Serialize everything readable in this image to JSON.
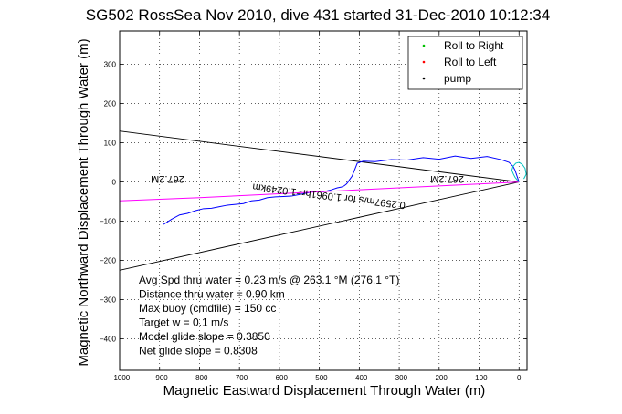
{
  "chart_data": {
    "type": "line",
    "title": "SG502 RossSea Nov 2010, dive 431 started 31-Dec-2010 10:12:34",
    "xlabel": "Magnetic Eastward Displacement Through Water (m)",
    "ylabel": "Magnetic Northward Displacement Through Water (m)",
    "xlim": [
      -1000,
      20
    ],
    "ylim": [
      -480,
      385
    ],
    "x_ticks": [
      -1000,
      -900,
      -800,
      -700,
      -600,
      -500,
      -400,
      -300,
      -200,
      -100,
      0
    ],
    "x_tick_labels": [
      "−1000",
      "−900",
      "−800",
      "−700",
      "−600",
      "−500",
      "−400",
      "−300",
      "−200",
      "−100",
      "0"
    ],
    "y_ticks": [
      -400,
      -300,
      -200,
      -100,
      0,
      100,
      200,
      300
    ],
    "y_tick_labels": [
      "−400",
      "−300",
      "−200",
      "−100",
      "0",
      "100",
      "200",
      "300"
    ],
    "grid": true,
    "legend_position": "top-right",
    "legend": [
      {
        "label": "Roll to Right",
        "color": "#00c000",
        "marker": "dot"
      },
      {
        "label": "Roll to Left",
        "color": "#ff0000",
        "marker": "dot"
      },
      {
        "label": "pump",
        "color": "#000000",
        "marker": "dot"
      }
    ],
    "series": [
      {
        "color": "#0000ff",
        "x": [
          0,
          -5,
          -10,
          -15,
          -25,
          -45,
          -80,
          -120,
          -160,
          -200,
          -240,
          -280,
          -320,
          -360,
          -390,
          -405,
          -412,
          -418,
          -425,
          -428,
          -432,
          -438,
          -445,
          -455,
          -470,
          -490,
          -510,
          -530,
          -550,
          -570,
          -590,
          -610,
          -630,
          -650,
          -670,
          -690,
          -710,
          -730,
          -750,
          -770,
          -790,
          -810,
          -830,
          -850,
          -870,
          -890
        ],
        "y": [
          0,
          15,
          30,
          40,
          50,
          57,
          65,
          60,
          66,
          58,
          62,
          56,
          57,
          52,
          53,
          48,
          30,
          15,
          5,
          0,
          -5,
          -10,
          -13,
          -15,
          -20,
          -25,
          -23,
          -28,
          -32,
          -36,
          -37,
          -38,
          -40,
          -46,
          -48,
          -55,
          -57,
          -59,
          -63,
          -67,
          -68,
          -73,
          -80,
          -84,
          -95,
          -108
        ]
      },
      {
        "color": "#ff00ff",
        "x": [
          0,
          -100,
          -200,
          -300,
          -400,
          -500,
          -600,
          -700,
          -800,
          -900,
          -1000
        ],
        "y": [
          0,
          -5,
          -10,
          -15,
          -20,
          -25,
          -30,
          -35,
          -40,
          -44,
          -48
        ]
      },
      {
        "color": "#00c0c0",
        "x": [
          0,
          -3,
          -6,
          -10,
          -14,
          -18,
          -15,
          -8,
          0,
          8,
          15,
          18,
          12
        ],
        "y": [
          0,
          3,
          7,
          12,
          20,
          30,
          40,
          48,
          50,
          45,
          35,
          20,
          8
        ]
      }
    ],
    "reference_lines": [
      {
        "color": "#000000",
        "x": [
          0,
          -1000
        ],
        "y": [
          0,
          130
        ]
      },
      {
        "color": "#000000",
        "x": [
          0,
          -1000
        ],
        "y": [
          0,
          -225
        ]
      }
    ],
    "annotations": [
      {
        "text": "267.2M",
        "x": -180,
        "y": 15,
        "rotation": 180
      },
      {
        "text": "267.2M",
        "x": -880,
        "y": 15,
        "rotation": 180
      },
      {
        "text": "0.2597m/s for 1.0961hr=1.0249km",
        "x": -475,
        "y": -28,
        "rotation": 187
      }
    ],
    "stats": [
      "Avg Spd thru water =  0.23 m/s @ 263.1   °M (276.1 °T)",
      "Distance thru water =  0.90 km",
      "Max buoy (cmdfile) = 150 cc",
      "Target w = 0.1 m/s",
      "Model glide slope = 0.3850",
      "Net glide slope = 0.8308"
    ]
  }
}
